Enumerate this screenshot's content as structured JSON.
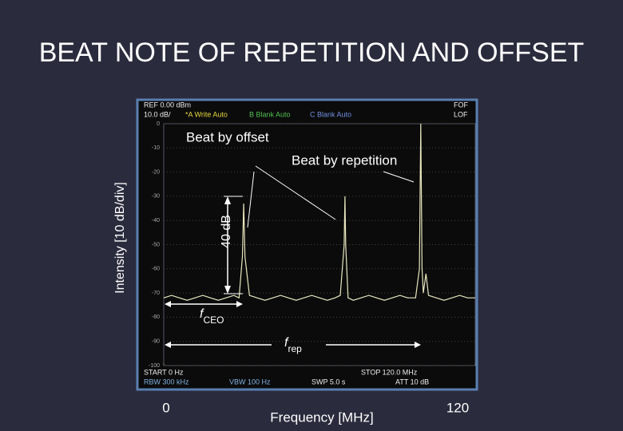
{
  "chart_data": {
    "type": "line",
    "title": "BEAT NOTE OF REPETITION AND OFFSET",
    "y_axis_label": "Intensity [10 dB/div]",
    "x_axis_label": "Frequency [MHz]",
    "screen_header": [
      "REF 0.00 dBm",
      "10.0 dB/",
      "*A Write Auto",
      "B Blank Auto",
      "C Blank Auto",
      "FOF",
      "LOF"
    ],
    "screen_footer": [
      "START 0 Hz",
      "STOP 120.0 MHz",
      "RBW 300 kHz",
      "VBW 100 Hz",
      "SWP 5.0 s",
      "ATT 10 dB"
    ],
    "annotations": {
      "offset": "Beat by offset",
      "repetition": "Beat by repetition",
      "depth": "40 dB",
      "fceo": {
        "main": "f",
        "sub": "CEO"
      },
      "frep": {
        "main": "f",
        "sub": "rep"
      }
    },
    "x": [
      0,
      3,
      6,
      9,
      12,
      15,
      18,
      21,
      24,
      27,
      29,
      30.3,
      30.8,
      31.3,
      33,
      36,
      39,
      42,
      45,
      48,
      51,
      54,
      57,
      60,
      63,
      66,
      68,
      69.5,
      69.8,
      70.1,
      71,
      73,
      76,
      79,
      82,
      85,
      88,
      91,
      94,
      97,
      98.5,
      99,
      99.5,
      100,
      101,
      102,
      105,
      108,
      111,
      114,
      117,
      120
    ],
    "series": [
      {
        "name": "A",
        "color": "#e8e8c0",
        "values": [
          -72,
          -71,
          -72,
          -73,
          -72,
          -71,
          -72,
          -73,
          -72,
          -71,
          -72,
          -55,
          -33,
          -55,
          -71,
          -72,
          -73,
          -72,
          -71,
          -72,
          -73,
          -72,
          -71,
          -72,
          -73,
          -72,
          -71,
          -50,
          -30,
          -50,
          -72,
          -73,
          -72,
          -71,
          -72,
          -73,
          -72,
          -71,
          -72,
          -72,
          -60,
          0,
          -60,
          -70,
          -62,
          -71,
          -72,
          -73,
          -72,
          -71,
          -72,
          -72
        ]
      }
    ],
    "xlim": [
      0,
      120
    ],
    "xticks": [
      0,
      120
    ],
    "ylim": [
      -100,
      0
    ],
    "yticks": [
      0,
      -10,
      -20,
      -30,
      -40,
      -50,
      -60,
      -70,
      -80,
      -90,
      -100
    ],
    "grid": true
  }
}
